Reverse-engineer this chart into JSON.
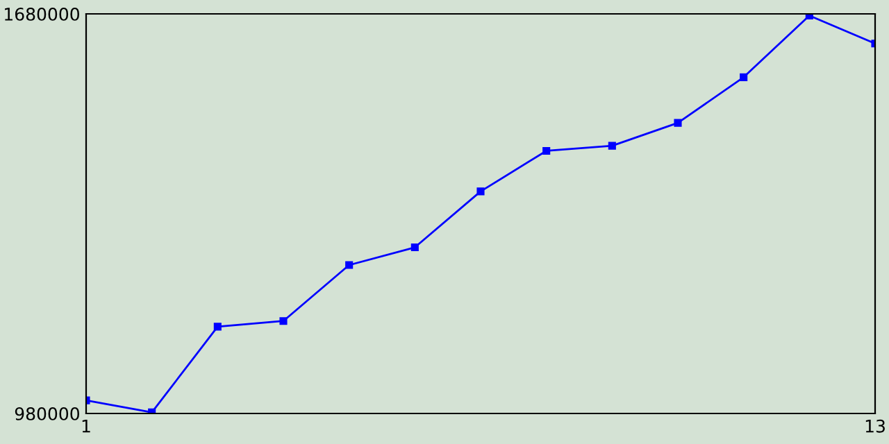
{
  "chart_data": {
    "type": "line",
    "x": [
      1,
      2,
      3,
      4,
      5,
      6,
      7,
      8,
      9,
      10,
      11,
      12,
      13
    ],
    "series": [
      {
        "color": "#0000ff",
        "values": [
          1003000,
          982000,
          1132000,
          1142000,
          1240000,
          1271000,
          1369000,
          1440000,
          1449000,
          1489000,
          1569000,
          1677000,
          1628000
        ]
      }
    ],
    "xlim": [
      1,
      13
    ],
    "xticks": [
      1,
      13
    ],
    "ylim": [
      980000,
      1680000
    ],
    "yticks": [
      980000,
      1680000
    ],
    "marker": "square",
    "line_style": "solid",
    "grid": false,
    "legend": false
  }
}
